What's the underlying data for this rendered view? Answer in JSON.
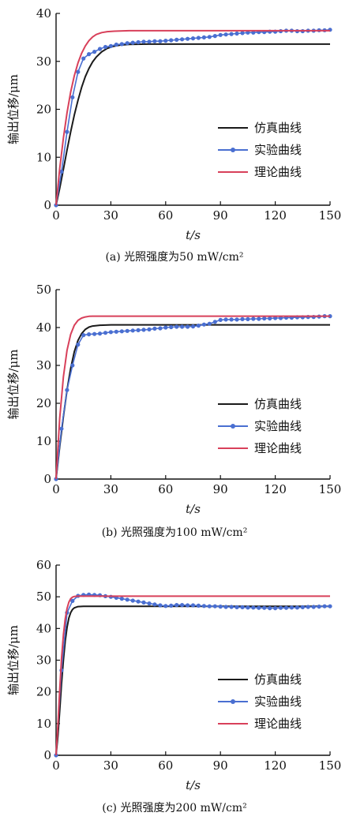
{
  "panels": [
    {
      "caption": "(a) 光照强度为50 mW/cm²",
      "chart_data": {
        "type": "line",
        "xlabel": "t/s",
        "ylabel": "输出位移/μm",
        "xlim": [
          0,
          150
        ],
        "ylim": [
          0,
          40
        ],
        "xticks": [
          0,
          30,
          60,
          90,
          120,
          150
        ],
        "yticks": [
          0,
          10,
          20,
          30,
          40
        ],
        "legend_position": "right-middle",
        "series": [
          {
            "name": "仿真曲线",
            "color": "#1a1a1a",
            "marker": false,
            "x": [
              0,
              2,
              4,
              6,
              8,
              10,
              12,
              14,
              16,
              18,
              20,
              22,
              25,
              28,
              31,
              35,
              40,
              50,
              60,
              80,
              100,
              120,
              150
            ],
            "y": [
              0,
              3.5,
              7.5,
              11.5,
              15.3,
              18.8,
              21.9,
              24.6,
              26.8,
              28.5,
              29.9,
              30.9,
              32.0,
              32.7,
              33.1,
              33.4,
              33.55,
              33.6,
              33.6,
              33.6,
              33.6,
              33.6,
              33.6
            ]
          },
          {
            "name": "实验曲线",
            "color": "#4a6fd1",
            "marker": true,
            "x": [
              0,
              3,
              6,
              9,
              12,
              15,
              18,
              21,
              24,
              27,
              30,
              33,
              36,
              39,
              42,
              45,
              48,
              51,
              54,
              57,
              60,
              63,
              66,
              69,
              72,
              75,
              78,
              81,
              84,
              87,
              90,
              93,
              96,
              99,
              102,
              105,
              108,
              111,
              114,
              117,
              120,
              123,
              126,
              129,
              132,
              135,
              138,
              141,
              144,
              147,
              150
            ],
            "y": [
              0,
              7.0,
              15.3,
              22.5,
              27.8,
              30.6,
              31.5,
              32.0,
              32.6,
              33.0,
              33.2,
              33.5,
              33.6,
              33.8,
              33.9,
              34.0,
              34.1,
              34.1,
              34.2,
              34.2,
              34.3,
              34.4,
              34.5,
              34.6,
              34.7,
              34.8,
              34.9,
              35.0,
              35.1,
              35.3,
              35.5,
              35.6,
              35.7,
              35.8,
              35.9,
              36.0,
              36.0,
              36.1,
              36.1,
              36.2,
              36.2,
              36.3,
              36.4,
              36.4,
              36.3,
              36.3,
              36.4,
              36.4,
              36.5,
              36.5,
              36.6
            ]
          },
          {
            "name": "理论曲线",
            "color": "#d8405a",
            "marker": false,
            "x": [
              0,
              2,
              4,
              6,
              8,
              10,
              12,
              14,
              16,
              18,
              20,
              22,
              25,
              28,
              32,
              40,
              50,
              70,
              100,
              150
            ],
            "y": [
              0,
              7.6,
              14.0,
              19.3,
              23.6,
              27.0,
              29.7,
              31.7,
              33.2,
              34.3,
              35.1,
              35.6,
              36.0,
              36.2,
              36.3,
              36.4,
              36.4,
              36.4,
              36.4,
              36.4
            ]
          }
        ]
      }
    },
    {
      "caption": "(b) 光照强度为100 mW/cm²",
      "chart_data": {
        "type": "line",
        "xlabel": "t/s",
        "ylabel": "输出位移/μm",
        "xlim": [
          0,
          150
        ],
        "ylim": [
          0,
          50
        ],
        "xticks": [
          0,
          30,
          60,
          90,
          120,
          150
        ],
        "yticks": [
          0,
          10,
          20,
          30,
          40,
          50
        ],
        "legend_position": "right-middle",
        "series": [
          {
            "name": "仿真曲线",
            "color": "#1a1a1a",
            "marker": false,
            "x": [
              0,
              2,
              4,
              6,
              8,
              10,
              12,
              14,
              16,
              18,
              20,
              24,
              30,
              40,
              60,
              100,
              150
            ],
            "y": [
              0,
              8.5,
              16.5,
              23.5,
              29.2,
              33.6,
              36.6,
              38.4,
              39.5,
              40.1,
              40.4,
              40.6,
              40.7,
              40.7,
              40.7,
              40.7,
              40.7
            ]
          },
          {
            "name": "实验曲线",
            "color": "#4a6fd1",
            "marker": true,
            "x": [
              0,
              3,
              6,
              9,
              12,
              15,
              18,
              21,
              24,
              27,
              30,
              33,
              36,
              39,
              42,
              45,
              48,
              51,
              54,
              57,
              60,
              63,
              66,
              69,
              72,
              75,
              78,
              81,
              84,
              87,
              90,
              93,
              96,
              99,
              102,
              105,
              108,
              111,
              114,
              117,
              120,
              123,
              126,
              129,
              132,
              135,
              138,
              141,
              144,
              147,
              150
            ],
            "y": [
              0,
              13.3,
              23.5,
              30.0,
              35.5,
              38.0,
              38.2,
              38.3,
              38.4,
              38.6,
              38.8,
              38.9,
              39.0,
              39.1,
              39.2,
              39.3,
              39.4,
              39.5,
              39.7,
              39.8,
              40.0,
              40.1,
              40.2,
              40.2,
              40.2,
              40.3,
              40.5,
              40.8,
              41.0,
              41.5,
              42.0,
              42.1,
              42.1,
              42.1,
              42.2,
              42.2,
              42.3,
              42.3,
              42.4,
              42.4,
              42.5,
              42.5,
              42.6,
              42.6,
              42.7,
              42.7,
              42.8,
              42.8,
              42.9,
              43.0,
              43.0
            ]
          },
          {
            "name": "理论曲线",
            "color": "#d8405a",
            "marker": false,
            "x": [
              0,
              2,
              4,
              6,
              8,
              10,
              12,
              14,
              16,
              18,
              20,
              24,
              30,
              40,
              60,
              100,
              150
            ],
            "y": [
              0,
              16.0,
              27.0,
              34.0,
              38.2,
              40.6,
              41.9,
              42.5,
              42.8,
              42.95,
              43.0,
              43.0,
              43.0,
              43.0,
              43.0,
              43.0,
              43.0
            ]
          }
        ]
      }
    },
    {
      "caption": "(c) 光照强度为200 mW/cm²",
      "chart_data": {
        "type": "line",
        "xlabel": "t/s",
        "ylabel": "输出位移/μm",
        "xlim": [
          0,
          150
        ],
        "ylim": [
          0,
          60
        ],
        "xticks": [
          0,
          30,
          60,
          90,
          120,
          150
        ],
        "yticks": [
          0,
          10,
          20,
          30,
          40,
          50,
          60
        ],
        "legend_position": "right-middle",
        "series": [
          {
            "name": "仿真曲线",
            "color": "#1a1a1a",
            "marker": false,
            "x": [
              0,
              1,
              2,
              3,
              4,
              5,
              6,
              7,
              8,
              9,
              10,
              12,
              15,
              20,
              30,
              60,
              100,
              150
            ],
            "y": [
              0,
              6.0,
              14.0,
              22.5,
              30.0,
              36.0,
              40.3,
              43.3,
              45.0,
              46.0,
              46.5,
              46.9,
              47.0,
              47.0,
              47.0,
              47.0,
              47.0,
              47.0
            ]
          },
          {
            "name": "实验曲线",
            "color": "#4a6fd1",
            "marker": true,
            "x": [
              0,
              3,
              6,
              9,
              12,
              15,
              18,
              21,
              24,
              27,
              30,
              33,
              36,
              39,
              42,
              45,
              48,
              51,
              54,
              57,
              60,
              63,
              66,
              69,
              72,
              75,
              78,
              81,
              84,
              87,
              90,
              93,
              96,
              99,
              102,
              105,
              108,
              111,
              114,
              117,
              120,
              123,
              126,
              129,
              132,
              135,
              138,
              141,
              144,
              147,
              150
            ],
            "y": [
              0,
              26.8,
              45.0,
              48.7,
              50.3,
              50.6,
              50.7,
              50.6,
              50.5,
              50.2,
              50.0,
              49.7,
              49.4,
              49.1,
              48.8,
              48.5,
              48.2,
              47.9,
              47.6,
              47.3,
              47.1,
              47.2,
              47.4,
              47.4,
              47.3,
              47.3,
              47.2,
              47.1,
              47.0,
              47.0,
              46.9,
              46.8,
              46.8,
              46.7,
              46.7,
              46.6,
              46.6,
              46.5,
              46.5,
              46.4,
              46.4,
              46.5,
              46.5,
              46.6,
              46.6,
              46.7,
              46.8,
              46.8,
              46.9,
              47.0,
              47.0
            ]
          },
          {
            "name": "理论曲线",
            "color": "#d8405a",
            "marker": false,
            "x": [
              0,
              1,
              2,
              3,
              4,
              5,
              6,
              7,
              8,
              9,
              10,
              12,
              15,
              20,
              30,
              60,
              100,
              150
            ],
            "y": [
              0,
              9.5,
              20.5,
              30.5,
              38.0,
              43.0,
              46.3,
              48.3,
              49.4,
              49.9,
              50.1,
              50.2,
              50.2,
              50.2,
              50.2,
              50.2,
              50.2,
              50.2
            ]
          }
        ]
      }
    }
  ]
}
